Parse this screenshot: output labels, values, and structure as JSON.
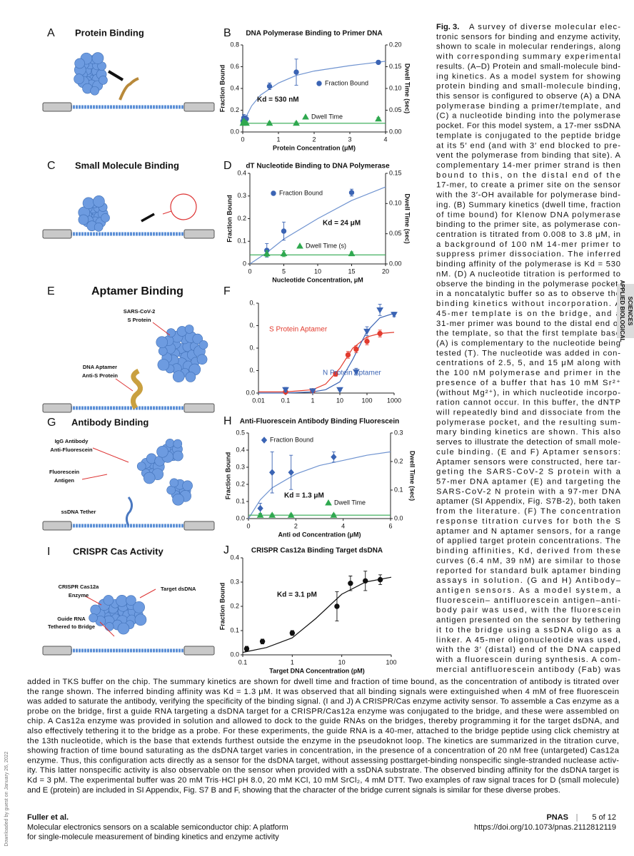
{
  "panels": [
    {
      "letter": "A",
      "title": "Protein Binding"
    },
    {
      "letter": "C",
      "title": "Small Molecule Binding"
    },
    {
      "letter": "E",
      "title": "Aptamer Binding"
    },
    {
      "letter": "G",
      "title": "Antibody Binding"
    },
    {
      "letter": "I",
      "title": "CRISPR Cas Activity"
    }
  ],
  "rendering_labels": [
    "SARS-CoV-2",
    "S Protein",
    "DNA Aptamer",
    "Anti-S Protein",
    "IgG Antibody",
    "Anti-Fluorescein",
    "Fluorescein",
    "Antigen",
    "ssDNA Tether",
    "CRISPR Cas12a",
    "Enzyme",
    "Target dsDNA",
    "Guide RNA",
    "Tethered to Bridge"
  ],
  "chart_data": [
    {
      "type": "scatter",
      "panel": "B",
      "title": "DNA Polymerase  Binding to Primer DNA",
      "xlabel": "Protein Concentration (μM)",
      "ylabel": "Fraction Bound",
      "y2label": "Dwell Time (sec)",
      "annotation": "Kd = 530 nM",
      "xlim": [
        0,
        4
      ],
      "xticks": [
        0,
        1,
        2,
        3,
        4
      ],
      "ylim": [
        0,
        0.8
      ],
      "yticks": [
        {
          "value": 0,
          "label": "0.0"
        },
        0.2,
        0.4,
        0.6,
        0.8
      ],
      "y2lim": [
        0,
        0.2
      ],
      "y2ticks": [
        {
          "value": 0,
          "label": "0.00"
        },
        0.05,
        {
          "value": 0.1,
          "label": "0.10"
        },
        0.15,
        {
          "value": 0.2,
          "label": "0.20"
        }
      ],
      "series": [
        {
          "name": "Fraction Bound",
          "color": "#3b64b4",
          "marker": "circle",
          "x": [
            0.008,
            0.03,
            0.1,
            0.75,
            1.5,
            3.8
          ],
          "values": [
            0.1,
            0.13,
            0.12,
            0.42,
            0.55,
            0.64
          ],
          "errors": [
            0.03,
            0.03,
            0.03,
            0.03,
            0.12,
            0.01
          ]
        },
        {
          "name": "Dwell Time",
          "color": "#2fa84f",
          "marker": "triangle",
          "axis": "y2",
          "x": [
            0.008,
            0.03,
            0.1,
            0.75,
            1.5,
            3.8
          ],
          "values": [
            0.02,
            0.025,
            0.02,
            0.02,
            0.02,
            0.03
          ],
          "errors": [
            0.003,
            0.003,
            0.003,
            0.003,
            0.003,
            0.003
          ]
        }
      ],
      "fits": [
        {
          "color": "#6f93d0",
          "x": [
            0,
            0.25,
            0.5,
            1,
            1.5,
            2,
            3,
            4
          ],
          "values": [
            0.08,
            0.24,
            0.34,
            0.45,
            0.52,
            0.56,
            0.61,
            0.65
          ]
        },
        {
          "color": "#2fa84f",
          "axis": "y2",
          "x": [
            0,
            4
          ],
          "values": [
            0.02,
            0.02
          ]
        }
      ]
    },
    {
      "type": "scatter",
      "panel": "D",
      "title": "dT Nucleotide Binding to DNA Polymerase",
      "xlabel": "Nucleotide Concentration, μM",
      "ylabel": "Fraction Bound",
      "y2label": "Dwell Time (sec)",
      "annotation": "Kd = 24 μM",
      "xlim": [
        0,
        20
      ],
      "xticks": [
        0,
        5,
        10,
        15,
        20
      ],
      "ylim": [
        0,
        0.4
      ],
      "yticks": [
        0,
        0.1,
        0.2,
        0.3,
        0.4
      ],
      "y2lim": [
        0,
        0.15
      ],
      "y2ticks": [
        {
          "value": 0,
          "label": "0.00"
        },
        0.05,
        {
          "value": 0.1,
          "label": "0.10"
        },
        0.15
      ],
      "series": [
        {
          "name": "Fraction Bound",
          "color": "#3b64b4",
          "marker": "circle",
          "x": [
            2.5,
            5,
            15
          ],
          "values": [
            0.06,
            0.145,
            0.315
          ],
          "errors": [
            0.03,
            0.04,
            0.015
          ]
        },
        {
          "name": "Dwell Time (s)",
          "color": "#2fa84f",
          "marker": "triangle",
          "axis": "y2",
          "x": [
            2.5,
            5,
            15
          ],
          "values": [
            0.017,
            0.017,
            0.017
          ],
          "errors": [
            0.005,
            0.005,
            0.003
          ]
        }
      ],
      "fits": [
        {
          "color": "#6f93d0",
          "x": [
            0,
            2.5,
            5,
            10,
            15,
            20
          ],
          "values": [
            0,
            0.05,
            0.11,
            0.2,
            0.28,
            0.34
          ]
        },
        {
          "color": "#2fa84f",
          "axis": "y2",
          "x": [
            0,
            20
          ],
          "values": [
            0.015,
            0.015
          ]
        }
      ]
    },
    {
      "type": "scatter",
      "panel": "F",
      "xscale": "log",
      "xlim": [
        0.01,
        1000
      ],
      "xticks": [
        0.01,
        0.1,
        1,
        10,
        100,
        1000
      ],
      "ylim": [
        0,
        0.8
      ],
      "yticks": [
        {
          "value": 0,
          "label": "0.0"
        },
        {
          "value": 0.2,
          "label": "0."
        },
        {
          "value": 0.4,
          "label": "0."
        },
        {
          "value": 0.6,
          "label": "0."
        },
        {
          "value": 0.8,
          "label": "0."
        }
      ],
      "series": [
        {
          "name": "S Protein Aptamer",
          "color": "#e23b2e",
          "marker": "circle",
          "x": [
            0.1,
            1,
            7,
            20,
            40,
            100,
            300
          ],
          "values": [
            0.01,
            0.02,
            0.17,
            0.34,
            0.39,
            0.46,
            0.53
          ],
          "errors": [
            0.01,
            0.01,
            0.02,
            0.03,
            0.03,
            0.03,
            0.03
          ]
        },
        {
          "name": "N Protein Aptamer",
          "color": "#3b64b4",
          "marker": "triangle-down",
          "x": [
            0.1,
            1,
            10,
            40,
            100,
            300,
            1000
          ],
          "values": [
            0.03,
            0.02,
            0.03,
            0.19,
            0.55,
            0.74,
            0.7
          ],
          "errors": [
            0.02,
            0.01,
            0.01,
            0.03,
            0.04,
            0.05,
            0.02
          ]
        }
      ],
      "fits": [
        {
          "color": "#e23b2e",
          "x": [
            0.01,
            0.1,
            1,
            3,
            10,
            30,
            100,
            300,
            1000
          ],
          "values": [
            0.01,
            0.01,
            0.03,
            0.08,
            0.22,
            0.4,
            0.5,
            0.53,
            0.54
          ]
        },
        {
          "color": "#3b64b4",
          "x": [
            0.01,
            0.1,
            1,
            3,
            10,
            30,
            100,
            300,
            1000
          ],
          "values": [
            0,
            0,
            0.01,
            0.03,
            0.1,
            0.3,
            0.55,
            0.67,
            0.71
          ]
        }
      ]
    },
    {
      "type": "scatter",
      "panel": "H",
      "title": "Anti-Fluorescein Antibody Binding Fluorescein",
      "xlabel": "Anti   od Concentration (μM)",
      "ylabel": "Fraction Bound",
      "y2label": "Dwell Time (sec)",
      "annotation": "Kd = 1.3 μM",
      "xlim": [
        0,
        6
      ],
      "xticks": [
        0,
        2,
        4,
        6
      ],
      "ylim": [
        0,
        0.5
      ],
      "yticks": [
        {
          "value": 0,
          "label": "0.0"
        },
        0.1,
        0.2,
        0.3,
        0.4,
        0.5
      ],
      "y2lim": [
        0,
        0.3
      ],
      "y2ticks": [
        {
          "value": 0,
          "label": "0.0"
        },
        0.1,
        0.2,
        0.3
      ],
      "series": [
        {
          "name": "Fraction Bound",
          "color": "#3b64b4",
          "marker": "diamond",
          "x": [
            0.5,
            1,
            1.8,
            3.6
          ],
          "values": [
            0.06,
            0.27,
            0.27,
            0.36
          ],
          "errors": [
            0.03,
            0.12,
            0.1,
            0.03
          ]
        },
        {
          "name": "Dwell Time",
          "color": "#2fa84f",
          "marker": "triangle",
          "axis": "y2",
          "x": [
            0.5,
            1,
            1.8,
            3.6
          ],
          "values": [
            0.012,
            0.012,
            0.012,
            0.012
          ],
          "errors": [
            0.004,
            0.004,
            0.004,
            0.004
          ]
        }
      ],
      "fits": [
        {
          "color": "#6f93d0",
          "x": [
            0,
            0.5,
            1,
            2,
            3,
            4,
            5,
            6
          ],
          "values": [
            0,
            0.11,
            0.18,
            0.26,
            0.31,
            0.34,
            0.37,
            0.39
          ]
        },
        {
          "color": "#2fa84f",
          "axis": "y2",
          "x": [
            0,
            6
          ],
          "values": [
            0.012,
            0.012
          ]
        }
      ]
    },
    {
      "type": "scatter",
      "panel": "J",
      "title": "CRISPR Cas12a Binding Target dsDNA",
      "xscale": "log",
      "xlabel": "Target DNA Concentration (pM)",
      "ylabel": "Fraction Bound",
      "annotation": "Kd = 3.1 pM",
      "xlim": [
        0.1,
        100
      ],
      "xticks": [
        0.1,
        1,
        10,
        100
      ],
      "ylim": [
        0,
        0.4
      ],
      "yticks": [
        {
          "value": 0,
          "label": "0.0"
        },
        0.1,
        0.2,
        0.3,
        0.4
      ],
      "series": [
        {
          "name": null,
          "color": "#111111",
          "marker": "circle",
          "x": [
            0.12,
            0.25,
            1,
            8,
            15,
            30,
            60
          ],
          "values": [
            0.025,
            0.055,
            0.09,
            0.2,
            0.295,
            0.305,
            0.31
          ],
          "errors": [
            0.01,
            0.01,
            0.01,
            0.06,
            0.03,
            0.04,
            0.02
          ]
        }
      ],
      "fits": [
        {
          "color": "#111111",
          "x": [
            0.1,
            0.3,
            1,
            3,
            10,
            30,
            100
          ],
          "values": [
            0.01,
            0.03,
            0.07,
            0.15,
            0.25,
            0.3,
            0.32
          ]
        }
      ]
    }
  ],
  "caption": {
    "label": "Fig. 3.",
    "lines": [
      "A survey of diverse molecular elec-",
      "tronic sensors for binding and enzyme activity,",
      "shown to scale in molecular renderings, along",
      "with corresponding summary experimental",
      "results. (A–D) Protein and small-molecule bind-",
      "ing kinetics. As a model system for showing",
      "protein binding and small-molecule binding,",
      "this sensor is configured to observe (A) a DNA",
      "polymerase binding a primer/template, and",
      "(C) a nucleotide binding into the polymerase",
      "pocket. For this model system, a 17-mer ssDNA",
      "template is conjugated to the peptide bridge",
      "at its 5′ end (and with 3′ end blocked to pre-",
      "vent the polymerase from binding that site). A",
      "complementary 14-mer primer strand is then",
      "bound to this, on the distal end of the",
      "17-mer, to create a primer site on the sensor",
      "with the 3′-OH available for polymerase bind-",
      "ing. (B) Summary kinetics (dwell time, fraction",
      "of time bound) for Klenow DNA polymerase",
      "binding to the primer site, as polymerase con-",
      "centration is titrated from 0.008 to 3.8 μM, in",
      "a background of 100 nM 14-mer primer to",
      "suppress primer dissociation. The inferred",
      "binding affinity of the polymerase is Kd = 530",
      "nM. (D) A nucleotide titration is performed to",
      "observe the binding in the polymerase pocket,",
      "in a noncatalytic buffer so as to observe the",
      "binding kinetics without incorporation. A",
      "45-mer template is on the bridge, and a",
      "31-mer primer was bound to the distal end of",
      "the template, so that the first template base",
      "(A) is complementary to the nucleotide being",
      "tested (T). The nucleotide was added in con-",
      "centrations of 2.5, 5, and 15 μM along with",
      "the 100 nM polymerase and primer in the",
      "presence of a buffer that has 10 mM Sr²⁺",
      "(without Mg²⁺), in which nucleotide incorpo-",
      "ration cannot occur. In this buffer, the dNTP",
      "will repeatedly bind and dissociate from the",
      "polymerase pocket, and the resulting sum-",
      "mary binding kinetics are shown. This also",
      "serves to illustrate the detection of small mole-",
      "cule binding. (E and F) Aptamer sensors:",
      "Aptamer sensors were constructed, here tar-",
      "geting the SARS-CoV-2 S protein with a",
      "57-mer DNA aptamer (E) and targeting the",
      "SARS-CoV-2 N protein with a 97-mer DNA",
      "aptamer (SI Appendix, Fig. S7B-2), both taken",
      "from the literature. (F) The concentration",
      "response titration curves for both the S",
      "aptamer and N aptamer sensors, for a range",
      "of applied target protein concentrations. The",
      "binding affinities, Kd, derived from these",
      "curves (6.4 nM, 39 nM) are similar to those",
      "reported for standard bulk aptamer binding",
      "assays in solution. (G and H) Antibody–",
      "antigen sensors. As a model system, a",
      "fluorescein– antifluorescein antigen–anti-",
      "body pair was used, with the fluorescein",
      "antigen presented on the sensor by tethering",
      "it to the bridge using a ssDNA oligo as a",
      "linker. A 45-mer oligonucleotide was used,",
      "with the 3′ (distal) end of the DNA capped",
      "with a fluorescein during synthesis. A com-",
      "mercial antifluorescein antibody (Fab) was"
    ]
  },
  "body": {
    "lines": [
      "added in TKS buffer on the chip. The summary kinetics are shown for dwell time and fraction of time bound, as the concentration of antibody is titrated over",
      "the range shown. The inferred binding affinity was Kd = 1.3 μM. It was observed that all binding signals were extinguished when 4 mM of free fluorescein",
      "was added to saturate the antibody, verifying the specificity of the binding signal. (I and J) A CRISPR/Cas enzyme activity sensor. To assemble a Cas enzyme as a",
      "probe on the bridge, first a guide RNA targeting a dsDNA target for a CRISPR/Cas12a enzyme was conjugated to the bridge, and these were assembled on",
      "chip. A Cas12a enzyme was provided in solution and allowed to dock to the guide RNAs on the bridges, thereby programming it for the target dsDNA, and",
      "also effectively tethering it to the bridge as a probe. For these experiments, the guide RNA is a 40-mer, attached to the bridge peptide using click chemistry at",
      "the 13th nucleotide, which is the base that extends furthest outside the enzyme in the pseudoknot loop. The kinetics are summarized in the titration curve,",
      "showing fraction of time bound saturating as the dsDNA target varies in concentration, in the presence of a concentration of 20 nM free (untargeted) Cas12a",
      "enzyme. Thus, this configuration acts directly as a sensor for the dsDNA target, without assessing posttarget-binding nonspecific single-stranded nuclease activ-",
      "ity. This latter nonspecific activity is also observable on the sensor when provided with a ssDNA substrate. The observed binding affinity for the dsDNA target is",
      "Kd = 3 pM. The experimental buffer was 20 mM Tris·HCl pH 8.0, 20 mM KCl, 10 mM SrCl₂, 4 mM DTT. Two examples of raw signal traces for D (small molecule)",
      "and E (protein) are included in SI Appendix, Fig. S7 B and F, showing that the character of the bridge current signals is similar for these diverse probes."
    ]
  },
  "footer": {
    "authors": "Fuller et al.",
    "title_lines": [
      "Molecular electronics sensors on a scalable semiconductor chip: A platform",
      "for single-molecule measurement of binding kinetics and enzyme activity"
    ],
    "journal": "PNAS",
    "separator": "|",
    "page": "5 of 12",
    "doi": "https://doi.org/10.1073/pnas.2112812119"
  },
  "sidebar": [
    "APPLIED BIOLOGICAL",
    "SCIENCES"
  ],
  "download_note": "Downloaded by guest on January 26, 2022"
}
